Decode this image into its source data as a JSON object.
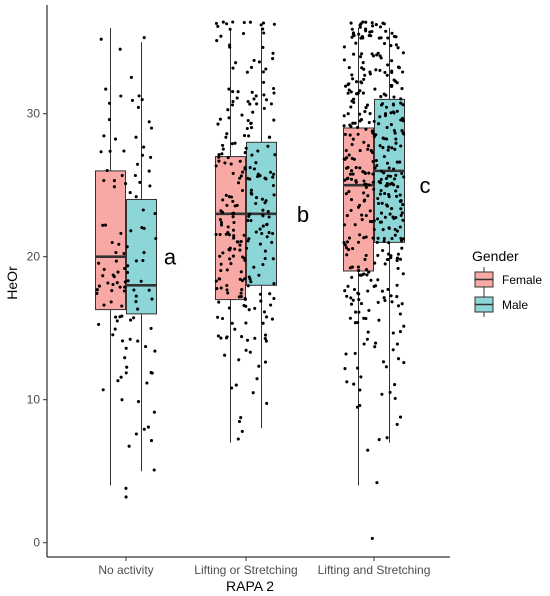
{
  "chart_data": {
    "type": "box",
    "xlabel": "RAPA 2",
    "ylabel": "HeOr",
    "ylim": [
      -1,
      37.6
    ],
    "yticks": [
      0,
      10,
      20,
      30
    ],
    "categories": [
      "No activity",
      "Lifting or Stretching",
      "Lifting and Stretching"
    ],
    "group_letters": [
      "a",
      "b",
      "c"
    ],
    "legend": {
      "title": "Gender",
      "position": "right",
      "entries": [
        {
          "label": "Female",
          "color": "#F8A9A5"
        },
        {
          "label": "Male",
          "color": "#8CD6D8"
        }
      ]
    },
    "series": [
      {
        "name": "Female",
        "color": "#F8A9A5",
        "boxes": [
          {
            "min": 4,
            "q1": 16.3,
            "median": 20,
            "q3": 26,
            "max": 36
          },
          {
            "min": 7,
            "q1": 17,
            "median": 23,
            "q3": 27,
            "max": 36
          },
          {
            "min": 4,
            "q1": 19,
            "median": 25,
            "q3": 29,
            "max": 36
          }
        ]
      },
      {
        "name": "Male",
        "color": "#8CD6D8",
        "boxes": [
          {
            "min": 5,
            "q1": 16,
            "median": 18,
            "q3": 24,
            "max": 35
          },
          {
            "min": 8,
            "q1": 18,
            "median": 23,
            "q3": 28,
            "max": 36
          },
          {
            "min": 7,
            "q1": 21,
            "median": 26,
            "q3": 31,
            "max": 36
          }
        ]
      }
    ],
    "jitter": [
      {
        "category": "No activity",
        "n": 120,
        "range": [
          3,
          36.5
        ]
      },
      {
        "category": "Lifting or Stretching",
        "n": 260,
        "range": [
          7,
          36.5
        ]
      },
      {
        "category": "Lifting and Stretching",
        "n": 420,
        "range": [
          0.3,
          36.5
        ]
      }
    ]
  }
}
